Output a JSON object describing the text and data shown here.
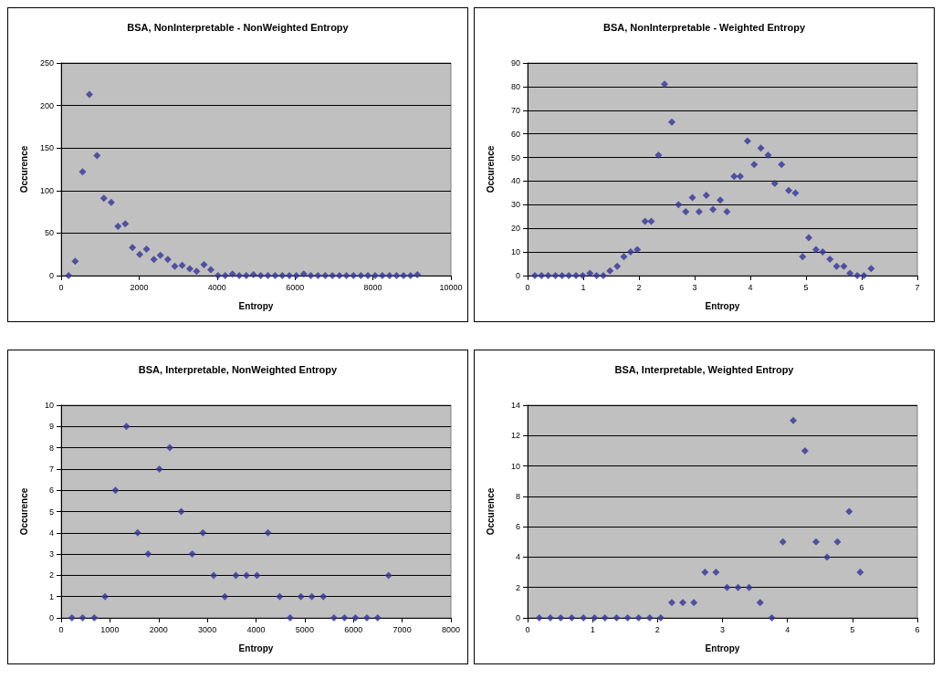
{
  "chart_data": [
    {
      "type": "scatter",
      "title": "BSA, NonInterpretable - NonWeighted Entropy",
      "xlabel": "Entropy",
      "ylabel": "Occurence",
      "color": "#333399",
      "marker": "diamond",
      "grid": "y",
      "xlim": [
        0,
        10000
      ],
      "xticks": [
        0,
        2000,
        4000,
        6000,
        8000,
        10000
      ],
      "ylim": [
        0,
        250
      ],
      "yticks": [
        0,
        50,
        100,
        150,
        200,
        250
      ],
      "x": [
        190,
        360,
        550,
        725,
        920,
        1095,
        1285,
        1460,
        1645,
        1830,
        2015,
        2190,
        2380,
        2545,
        2735,
        2915,
        3105,
        3300,
        3475,
        3665,
        3840,
        4025,
        4210,
        4395,
        4570,
        4750,
        4935,
        5120,
        5305,
        5490,
        5675,
        5855,
        6035,
        6225,
        6405,
        6590,
        6775,
        6960,
        7140,
        7320,
        7500,
        7690,
        7870,
        8055,
        8240,
        8425,
        8605,
        8785,
        8965,
        9140
      ],
      "values": [
        0,
        17,
        122,
        213,
        141,
        91,
        86,
        58,
        61,
        33,
        25,
        31,
        19,
        24,
        19,
        11,
        12,
        8,
        5,
        13,
        7,
        0,
        0,
        2,
        0,
        0,
        1,
        0,
        0,
        0,
        0,
        0,
        0,
        2,
        0,
        0,
        0,
        0,
        0,
        0,
        0,
        0,
        0,
        0,
        0,
        0,
        0,
        0,
        0,
        1
      ]
    },
    {
      "type": "scatter",
      "title": "BSA, NonInterpretable - Weighted Entropy",
      "xlabel": "Entropy",
      "ylabel": "Occurence",
      "color": "#333399",
      "marker": "diamond",
      "grid": "y",
      "xlim": [
        0,
        7
      ],
      "xticks": [
        0,
        1,
        2,
        3,
        4,
        5,
        6,
        7
      ],
      "ylim": [
        0,
        90
      ],
      "yticks": [
        0,
        10,
        20,
        30,
        40,
        50,
        60,
        70,
        80,
        90
      ],
      "x": [
        0.13,
        0.25,
        0.37,
        0.5,
        0.62,
        0.74,
        0.87,
        0.99,
        1.12,
        1.24,
        1.36,
        1.48,
        1.61,
        1.73,
        1.85,
        1.97,
        2.11,
        2.22,
        2.35,
        2.46,
        2.59,
        2.71,
        2.84,
        2.96,
        3.08,
        3.21,
        3.33,
        3.46,
        3.58,
        3.71,
        3.82,
        3.95,
        4.07,
        4.19,
        4.32,
        4.44,
        4.56,
        4.69,
        4.81,
        4.94,
        5.05,
        5.18,
        5.3,
        5.43,
        5.55,
        5.68,
        5.79,
        5.92,
        6.04,
        6.17
      ],
      "values": [
        0,
        0,
        0,
        0,
        0,
        0,
        0,
        0,
        1,
        0,
        0,
        2,
        4,
        8,
        10,
        11,
        23,
        23,
        51,
        81,
        65,
        30,
        27,
        33,
        27,
        34,
        28,
        32,
        27,
        42,
        42,
        57,
        47,
        54,
        51,
        39,
        47,
        36,
        35,
        8,
        16,
        11,
        10,
        7,
        4,
        4,
        1,
        0,
        0,
        3
      ]
    },
    {
      "type": "scatter",
      "title": "BSA, Interpretable, NonWeighted Entropy",
      "xlabel": "Entropy",
      "ylabel": "Occurence",
      "color": "#333399",
      "marker": "diamond",
      "grid": "y",
      "xlim": [
        0,
        8000
      ],
      "xticks": [
        0,
        1000,
        2000,
        3000,
        4000,
        5000,
        6000,
        7000,
        8000
      ],
      "ylim": [
        0,
        10
      ],
      "yticks": [
        0,
        1,
        2,
        3,
        4,
        5,
        6,
        7,
        8,
        9,
        10
      ],
      "x": [
        220,
        440,
        680,
        900,
        1115,
        1340,
        1570,
        1785,
        2015,
        2230,
        2465,
        2690,
        2910,
        3130,
        3360,
        3585,
        3805,
        4020,
        4245,
        4485,
        4700,
        4920,
        5145,
        5380,
        5600,
        5815,
        6040,
        6275,
        6495,
        6720
      ],
      "values": [
        0,
        0,
        0,
        1,
        6,
        9,
        4,
        3,
        7,
        8,
        5,
        3,
        4,
        2,
        1,
        2,
        2,
        2,
        4,
        1,
        0,
        1,
        1,
        1,
        0,
        0,
        0,
        0,
        0,
        2
      ]
    },
    {
      "type": "scatter",
      "title": "BSA, Interpretable, Weighted Entropy",
      "xlabel": "Entropy",
      "ylabel": "Occurence",
      "color": "#333399",
      "marker": "diamond",
      "grid": "y",
      "xlim": [
        0,
        6
      ],
      "xticks": [
        0,
        1,
        2,
        3,
        4,
        5,
        6
      ],
      "ylim": [
        0,
        14
      ],
      "yticks": [
        0,
        2,
        4,
        6,
        8,
        10,
        12,
        14
      ],
      "x": [
        0.18,
        0.35,
        0.51,
        0.68,
        0.86,
        1.03,
        1.19,
        1.37,
        1.54,
        1.71,
        1.88,
        2.05,
        2.22,
        2.39,
        2.56,
        2.73,
        2.9,
        3.07,
        3.24,
        3.41,
        3.58,
        3.76,
        3.93,
        4.09,
        4.27,
        4.44,
        4.61,
        4.77,
        4.95,
        5.12
      ],
      "values": [
        0,
        0,
        0,
        0,
        0,
        0,
        0,
        0,
        0,
        0,
        0,
        0,
        1,
        1,
        1,
        3,
        3,
        2,
        2,
        2,
        1,
        0,
        5,
        13,
        11,
        5,
        4,
        5,
        7,
        3
      ]
    }
  ]
}
